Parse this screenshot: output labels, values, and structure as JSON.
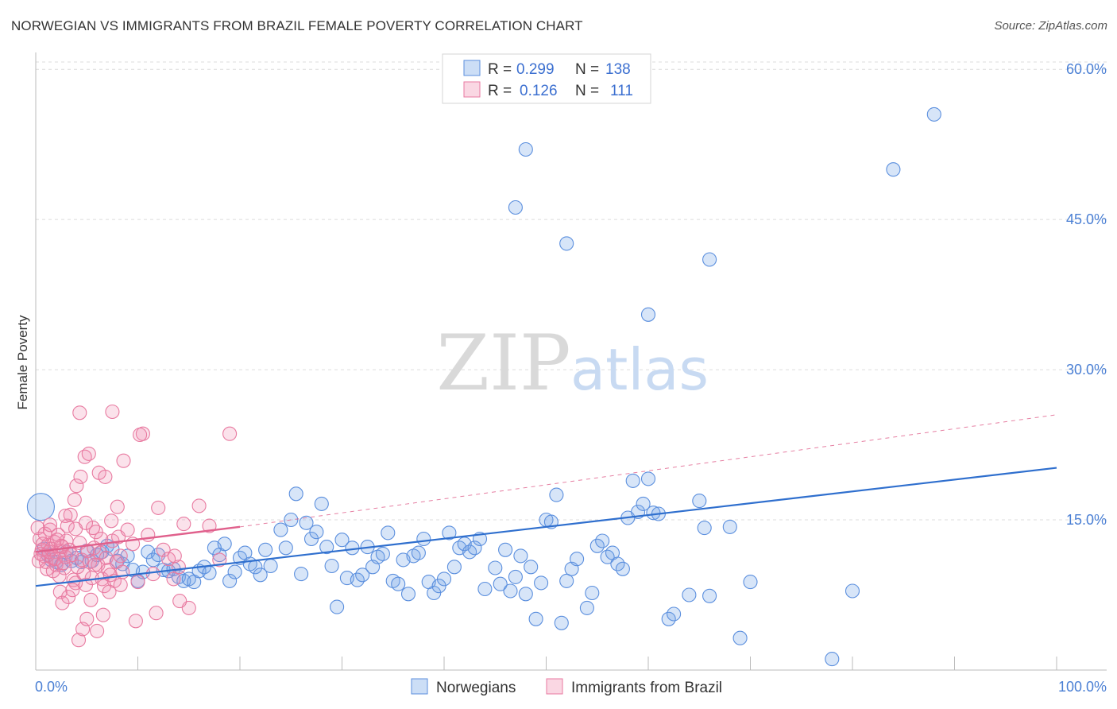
{
  "title": "NORWEGIAN VS IMMIGRANTS FROM BRAZIL FEMALE POVERTY CORRELATION CHART",
  "source": "Source: ZipAtlas.com",
  "watermark": {
    "zip": "ZIP",
    "atlas": "atlas"
  },
  "colors": {
    "blue": "#5b8fde",
    "blue_fill": "rgba(110,160,230,0.28)",
    "blue_line": "#2f6fce",
    "pink": "#e87aa0",
    "pink_fill": "rgba(240,140,175,0.25)",
    "pink_line": "#e0608c",
    "grid": "#dcdcdc",
    "axis_text": "#4a7fd4"
  },
  "legend_top": {
    "rows": [
      {
        "r_label": "R =",
        "r_value": "0.299",
        "n_label": "N =",
        "n_value": "138"
      },
      {
        "r_label": "R =",
        "r_value": "0.126",
        "n_label": "N =",
        "n_value": "111"
      }
    ]
  },
  "legend_bottom": {
    "items": [
      "Norwegians",
      "Immigrants from Brazil"
    ]
  },
  "chart_data": {
    "type": "scatter",
    "ylabel": "Female Poverty",
    "xlabel": "",
    "xlim": [
      0,
      100
    ],
    "ylim": [
      0,
      62
    ],
    "x_tick_labels": [
      {
        "value": 0,
        "label": "0.0%"
      },
      {
        "value": 100,
        "label": "100.0%"
      }
    ],
    "y_tick_labels": [
      {
        "value": 15,
        "label": "15.0%"
      },
      {
        "value": 30,
        "label": "30.0%"
      },
      {
        "value": 45,
        "label": "45.0%"
      },
      {
        "value": 60,
        "label": "60.0%"
      }
    ],
    "grid": true,
    "series": [
      {
        "name": "Norwegians",
        "color": "blue",
        "r": 0.299,
        "n": 138,
        "trend": {
          "x": [
            0,
            100
          ],
          "y": [
            8.4,
            20.2
          ],
          "dashed_extension": false
        },
        "points": [
          [
            0.5,
            16.3
          ],
          [
            0.8,
            12.1
          ],
          [
            1.2,
            11.5
          ],
          [
            1.5,
            11.0
          ],
          [
            2.0,
            10.8
          ],
          [
            2.5,
            10.5
          ],
          [
            3.0,
            11.8
          ],
          [
            3.5,
            10.9
          ],
          [
            4.0,
            11.2
          ],
          [
            4.5,
            10.8
          ],
          [
            5.0,
            11.9
          ],
          [
            5.5,
            10.9
          ],
          [
            6.0,
            11.5
          ],
          [
            6.5,
            11.8
          ],
          [
            7.0,
            12.4
          ],
          [
            7.5,
            12.1
          ],
          [
            8.0,
            10.9
          ],
          [
            8.5,
            10.6
          ],
          [
            9.0,
            11.4
          ],
          [
            9.5,
            10.0
          ],
          [
            10.0,
            8.9
          ],
          [
            10.5,
            9.8
          ],
          [
            11.0,
            11.8
          ],
          [
            11.5,
            11.0
          ],
          [
            12.0,
            11.5
          ],
          [
            12.5,
            10.0
          ],
          [
            13.0,
            9.9
          ],
          [
            13.5,
            10.1
          ],
          [
            14.0,
            9.3
          ],
          [
            14.5,
            8.9
          ],
          [
            15.0,
            9.1
          ],
          [
            15.5,
            8.8
          ],
          [
            16.0,
            9.9
          ],
          [
            16.5,
            10.3
          ],
          [
            17.0,
            9.7
          ],
          [
            17.5,
            12.2
          ],
          [
            18.0,
            11.5
          ],
          [
            18.5,
            12.6
          ],
          [
            19.0,
            8.9
          ],
          [
            19.5,
            9.8
          ],
          [
            20.0,
            11.2
          ],
          [
            20.5,
            11.7
          ],
          [
            21.0,
            10.6
          ],
          [
            21.5,
            10.3
          ],
          [
            22.0,
            9.5
          ],
          [
            22.5,
            12.0
          ],
          [
            23.0,
            10.4
          ],
          [
            24.0,
            14.0
          ],
          [
            24.5,
            12.2
          ],
          [
            25.0,
            15.0
          ],
          [
            25.5,
            17.6
          ],
          [
            26.0,
            9.6
          ],
          [
            26.5,
            14.7
          ],
          [
            27.0,
            13.1
          ],
          [
            27.5,
            13.8
          ],
          [
            28.0,
            16.6
          ],
          [
            28.5,
            12.3
          ],
          [
            29.0,
            10.4
          ],
          [
            29.5,
            6.3
          ],
          [
            30.0,
            13.0
          ],
          [
            30.5,
            9.2
          ],
          [
            31.0,
            12.2
          ],
          [
            31.5,
            9.0
          ],
          [
            32.0,
            9.5
          ],
          [
            32.5,
            12.3
          ],
          [
            33.0,
            10.3
          ],
          [
            33.5,
            11.3
          ],
          [
            34.0,
            11.6
          ],
          [
            34.5,
            13.7
          ],
          [
            35.0,
            8.9
          ],
          [
            35.5,
            8.6
          ],
          [
            36.0,
            11.0
          ],
          [
            36.5,
            7.6
          ],
          [
            37.0,
            11.4
          ],
          [
            37.5,
            11.7
          ],
          [
            38.0,
            13.1
          ],
          [
            38.5,
            8.8
          ],
          [
            39.0,
            7.7
          ],
          [
            39.5,
            8.4
          ],
          [
            40.0,
            9.1
          ],
          [
            40.5,
            13.7
          ],
          [
            41.0,
            10.3
          ],
          [
            41.5,
            12.2
          ],
          [
            42.0,
            12.6
          ],
          [
            42.5,
            11.8
          ],
          [
            43.0,
            12.2
          ],
          [
            43.5,
            13.1
          ],
          [
            44.0,
            8.1
          ],
          [
            45.0,
            10.2
          ],
          [
            45.5,
            8.6
          ],
          [
            46.0,
            12.0
          ],
          [
            46.5,
            7.9
          ],
          [
            47.0,
            9.3
          ],
          [
            47.5,
            11.4
          ],
          [
            48.0,
            7.6
          ],
          [
            48.5,
            10.3
          ],
          [
            49.0,
            5.1
          ],
          [
            49.5,
            8.7
          ],
          [
            50.0,
            15.0
          ],
          [
            50.5,
            14.8
          ],
          [
            51.0,
            17.5
          ],
          [
            51.5,
            4.7
          ],
          [
            52.0,
            8.9
          ],
          [
            52.5,
            10.1
          ],
          [
            53.0,
            11.1
          ],
          [
            54.0,
            6.2
          ],
          [
            54.5,
            7.7
          ],
          [
            55.0,
            12.4
          ],
          [
            55.5,
            12.9
          ],
          [
            56.0,
            11.3
          ],
          [
            56.5,
            11.7
          ],
          [
            57.0,
            10.6
          ],
          [
            57.5,
            10.1
          ],
          [
            58.0,
            15.2
          ],
          [
            58.5,
            18.9
          ],
          [
            59.0,
            15.8
          ],
          [
            59.5,
            16.6
          ],
          [
            60.0,
            19.1
          ],
          [
            60.5,
            15.7
          ],
          [
            61.0,
            15.6
          ],
          [
            62.0,
            5.1
          ],
          [
            62.5,
            5.6
          ],
          [
            64.0,
            7.5
          ],
          [
            65.0,
            16.9
          ],
          [
            65.5,
            14.2
          ],
          [
            66.0,
            7.4
          ],
          [
            68.0,
            14.3
          ],
          [
            69.0,
            3.2
          ],
          [
            70.0,
            8.8
          ],
          [
            78.0,
            1.1
          ],
          [
            80.0,
            7.9
          ],
          [
            48.0,
            52.0
          ],
          [
            47.0,
            46.2
          ],
          [
            52.0,
            42.6
          ],
          [
            66.0,
            41.0
          ],
          [
            60.0,
            35.5
          ],
          [
            84.0,
            50.0
          ],
          [
            88.0,
            55.5
          ]
        ]
      },
      {
        "name": "Immigrants from Brazil",
        "color": "pink",
        "r": 0.126,
        "n": 111,
        "trend": {
          "x": [
            0,
            20
          ],
          "y": [
            11.8,
            14.3
          ],
          "dashed_extension": {
            "x": [
              20,
              100
            ],
            "y": [
              14.3,
              25.5
            ]
          }
        },
        "points": [
          [
            0.2,
            14.2
          ],
          [
            0.4,
            13.1
          ],
          [
            0.6,
            12.0
          ],
          [
            0.8,
            11.4
          ],
          [
            1.0,
            10.8
          ],
          [
            1.2,
            12.5
          ],
          [
            1.4,
            14.0
          ],
          [
            1.6,
            11.2
          ],
          [
            1.8,
            12.8
          ],
          [
            2.0,
            10.5
          ],
          [
            2.2,
            13.5
          ],
          [
            2.4,
            11.9
          ],
          [
            2.6,
            12.3
          ],
          [
            2.8,
            10.2
          ],
          [
            3.0,
            12.9
          ],
          [
            0.3,
            10.9
          ],
          [
            0.5,
            11.6
          ],
          [
            0.7,
            12.6
          ],
          [
            0.9,
            13.6
          ],
          [
            1.1,
            10.1
          ],
          [
            1.3,
            11.8
          ],
          [
            1.5,
            12.1
          ],
          [
            1.7,
            9.9
          ],
          [
            1.9,
            11.1
          ],
          [
            2.1,
            13.0
          ],
          [
            2.3,
            9.4
          ],
          [
            2.5,
            12.4
          ],
          [
            2.7,
            10.7
          ],
          [
            2.9,
            11.3
          ],
          [
            3.1,
            14.4
          ],
          [
            3.3,
            12.0
          ],
          [
            3.5,
            11.5
          ],
          [
            3.7,
            9.0
          ],
          [
            3.9,
            8.7
          ],
          [
            4.1,
            10.3
          ],
          [
            4.3,
            12.7
          ],
          [
            4.5,
            11.0
          ],
          [
            4.7,
            9.6
          ],
          [
            4.9,
            8.5
          ],
          [
            5.1,
            11.9
          ],
          [
            5.3,
            10.8
          ],
          [
            5.5,
            9.2
          ],
          [
            5.7,
            12.2
          ],
          [
            5.9,
            13.8
          ],
          [
            6.1,
            10.5
          ],
          [
            6.3,
            11.7
          ],
          [
            6.5,
            9.1
          ],
          [
            6.7,
            8.4
          ],
          [
            6.9,
            11.2
          ],
          [
            7.1,
            10.0
          ],
          [
            7.3,
            9.5
          ],
          [
            7.5,
            12.9
          ],
          [
            7.7,
            8.9
          ],
          [
            7.9,
            10.8
          ],
          [
            8.1,
            13.3
          ],
          [
            8.3,
            11.4
          ],
          [
            8.5,
            9.8
          ],
          [
            2.4,
            7.8
          ],
          [
            2.6,
            6.7
          ],
          [
            3.2,
            7.3
          ],
          [
            3.6,
            8.0
          ],
          [
            4.2,
            3.0
          ],
          [
            4.6,
            4.1
          ],
          [
            5.0,
            5.1
          ],
          [
            5.4,
            7.0
          ],
          [
            6.0,
            3.9
          ],
          [
            6.6,
            5.5
          ],
          [
            7.2,
            7.8
          ],
          [
            3.4,
            15.5
          ],
          [
            3.8,
            17.0
          ],
          [
            4.0,
            18.4
          ],
          [
            4.4,
            19.3
          ],
          [
            4.8,
            21.3
          ],
          [
            5.2,
            21.6
          ],
          [
            5.6,
            14.2
          ],
          [
            6.2,
            19.7
          ],
          [
            6.8,
            19.3
          ],
          [
            7.4,
            14.9
          ],
          [
            8.0,
            16.3
          ],
          [
            8.6,
            20.9
          ],
          [
            9.0,
            14.0
          ],
          [
            9.5,
            12.6
          ],
          [
            10.0,
            8.8
          ],
          [
            10.5,
            23.6
          ],
          [
            11.0,
            13.5
          ],
          [
            11.5,
            9.6
          ],
          [
            12.0,
            16.2
          ],
          [
            12.5,
            12.0
          ],
          [
            13.0,
            11.1
          ],
          [
            13.5,
            9.1
          ],
          [
            14.0,
            10.3
          ],
          [
            14.5,
            14.6
          ],
          [
            15.0,
            6.2
          ],
          [
            16.0,
            16.4
          ],
          [
            17.0,
            14.4
          ],
          [
            18.0,
            11.0
          ],
          [
            19.0,
            23.6
          ],
          [
            4.3,
            25.7
          ],
          [
            7.5,
            25.8
          ],
          [
            10.2,
            23.5
          ],
          [
            11.8,
            5.7
          ],
          [
            13.6,
            11.4
          ],
          [
            14.1,
            6.9
          ],
          [
            9.8,
            4.9
          ],
          [
            8.3,
            8.5
          ],
          [
            6.4,
            13.1
          ],
          [
            5.8,
            10.5
          ],
          [
            4.9,
            14.7
          ],
          [
            3.9,
            14.1
          ],
          [
            2.9,
            15.4
          ],
          [
            1.4,
            14.5
          ]
        ]
      }
    ]
  }
}
